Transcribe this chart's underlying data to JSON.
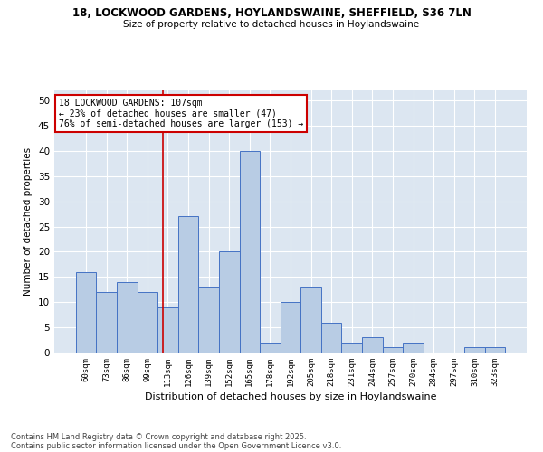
{
  "title1": "18, LOCKWOOD GARDENS, HOYLANDSWAINE, SHEFFIELD, S36 7LN",
  "title2": "Size of property relative to detached houses in Hoylandswaine",
  "xlabel": "Distribution of detached houses by size in Hoylandswaine",
  "ylabel": "Number of detached properties",
  "categories": [
    "60sqm",
    "73sqm",
    "86sqm",
    "99sqm",
    "113sqm",
    "126sqm",
    "139sqm",
    "152sqm",
    "165sqm",
    "178sqm",
    "192sqm",
    "205sqm",
    "218sqm",
    "231sqm",
    "244sqm",
    "257sqm",
    "270sqm",
    "284sqm",
    "297sqm",
    "310sqm",
    "323sqm"
  ],
  "values": [
    16,
    12,
    14,
    12,
    9,
    27,
    13,
    20,
    40,
    2,
    10,
    13,
    6,
    2,
    3,
    1,
    2,
    0,
    0,
    1,
    1
  ],
  "bar_color": "#b8cce4",
  "bar_edge_color": "#4472c4",
  "background_color": "#dce6f1",
  "grid_color": "#ffffff",
  "vline_x": 3.77,
  "vline_color": "#cc0000",
  "annotation_text": "18 LOCKWOOD GARDENS: 107sqm\n← 23% of detached houses are smaller (47)\n76% of semi-detached houses are larger (153) →",
  "annotation_box_color": "#cc0000",
  "footer1": "Contains HM Land Registry data © Crown copyright and database right 2025.",
  "footer2": "Contains public sector information licensed under the Open Government Licence v3.0.",
  "ylim": [
    0,
    52
  ],
  "yticks": [
    0,
    5,
    10,
    15,
    20,
    25,
    30,
    35,
    40,
    45,
    50
  ]
}
